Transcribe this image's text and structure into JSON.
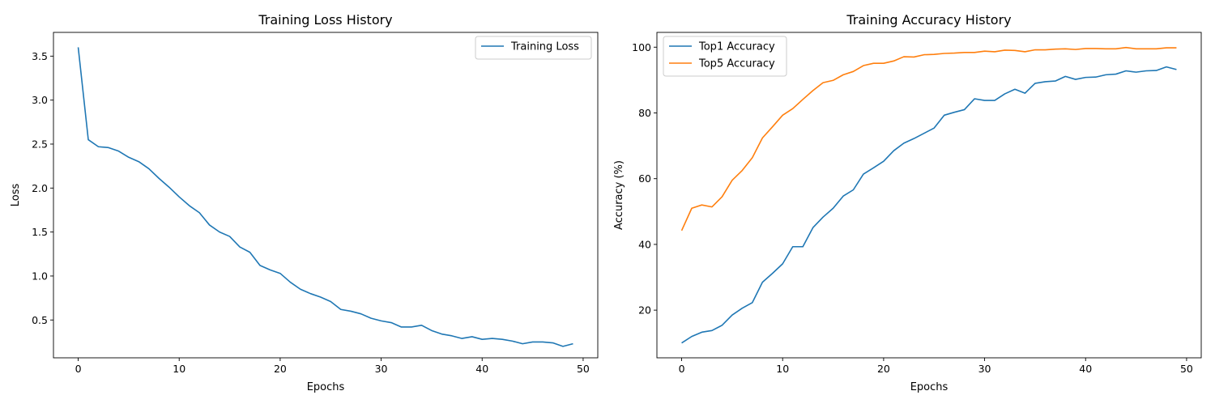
{
  "chart_data": [
    {
      "type": "line",
      "title": "Training Loss History",
      "xlabel": "Epochs",
      "ylabel": "Loss",
      "xlim": [
        -2.45,
        51.45
      ],
      "ylim": [
        0.07,
        3.77
      ],
      "xticks": [
        0,
        10,
        20,
        30,
        40,
        50
      ],
      "yticks": [
        0.5,
        1.0,
        1.5,
        2.0,
        2.5,
        3.0,
        3.5
      ],
      "ytick_labels": [
        "0.5",
        "1.0",
        "1.5",
        "2.0",
        "2.5",
        "3.0",
        "3.5"
      ],
      "legend_position": "top-right",
      "x": [
        0,
        1,
        2,
        3,
        4,
        5,
        6,
        7,
        8,
        9,
        10,
        11,
        12,
        13,
        14,
        15,
        16,
        17,
        18,
        19,
        20,
        21,
        22,
        23,
        24,
        25,
        26,
        27,
        28,
        29,
        30,
        31,
        32,
        33,
        34,
        35,
        36,
        37,
        38,
        39,
        40,
        41,
        42,
        43,
        44,
        45,
        46,
        47,
        48,
        49
      ],
      "series": [
        {
          "name": "Training Loss",
          "color": "#1f77b4",
          "values": [
            3.6,
            2.55,
            2.47,
            2.46,
            2.42,
            2.35,
            2.3,
            2.22,
            2.11,
            2.01,
            1.9,
            1.8,
            1.72,
            1.58,
            1.5,
            1.45,
            1.33,
            1.27,
            1.12,
            1.07,
            1.03,
            0.93,
            0.85,
            0.8,
            0.76,
            0.71,
            0.62,
            0.6,
            0.57,
            0.52,
            0.49,
            0.47,
            0.42,
            0.42,
            0.44,
            0.38,
            0.34,
            0.32,
            0.29,
            0.31,
            0.28,
            0.29,
            0.28,
            0.26,
            0.23,
            0.25,
            0.25,
            0.24,
            0.2,
            0.23
          ]
        }
      ]
    },
    {
      "type": "line",
      "title": "Training Accuracy History",
      "xlabel": "Epochs",
      "ylabel": "Accuracy (%)",
      "xlim": [
        -2.45,
        51.45
      ],
      "ylim": [
        5.5,
        104.5
      ],
      "xticks": [
        0,
        10,
        20,
        30,
        40,
        50
      ],
      "yticks": [
        20,
        40,
        60,
        80,
        100
      ],
      "ytick_labels": [
        "20",
        "40",
        "60",
        "80",
        "100"
      ],
      "legend_position": "top-left",
      "x": [
        0,
        1,
        2,
        3,
        4,
        5,
        6,
        7,
        8,
        9,
        10,
        11,
        12,
        13,
        14,
        15,
        16,
        17,
        18,
        19,
        20,
        21,
        22,
        23,
        24,
        25,
        26,
        27,
        28,
        29,
        30,
        31,
        32,
        33,
        34,
        35,
        36,
        37,
        38,
        39,
        40,
        41,
        42,
        43,
        44,
        45,
        46,
        47,
        48,
        49
      ],
      "series": [
        {
          "name": "Top1 Accuracy",
          "color": "#1f77b4",
          "values": [
            10.0,
            12.0,
            13.3,
            13.8,
            15.4,
            18.5,
            20.6,
            22.3,
            28.5,
            31.2,
            34.1,
            39.3,
            39.3,
            45.1,
            48.3,
            51.0,
            54.7,
            56.6,
            61.4,
            63.3,
            65.3,
            68.5,
            70.8,
            72.2,
            73.8,
            75.4,
            79.3,
            80.2,
            81.0,
            84.3,
            83.8,
            83.8,
            85.8,
            87.2,
            86.0,
            89.0,
            89.5,
            89.7,
            91.1,
            90.2,
            90.8,
            90.9,
            91.6,
            91.8,
            92.8,
            92.4,
            92.8,
            92.9,
            94.0,
            93.2
          ]
        },
        {
          "name": "Top5 Accuracy",
          "color": "#ff7f0e",
          "values": [
            44.2,
            51.0,
            52.0,
            51.4,
            54.5,
            59.5,
            62.5,
            66.4,
            72.4,
            75.8,
            79.3,
            81.3,
            84.1,
            86.8,
            89.2,
            89.9,
            91.6,
            92.6,
            94.4,
            95.1,
            95.1,
            95.8,
            97.1,
            97.0,
            97.7,
            97.8,
            98.1,
            98.2,
            98.4,
            98.4,
            98.8,
            98.6,
            99.1,
            99.0,
            98.6,
            99.2,
            99.2,
            99.4,
            99.5,
            99.3,
            99.6,
            99.6,
            99.5,
            99.5,
            99.9,
            99.5,
            99.5,
            99.5,
            99.8,
            99.8
          ]
        }
      ]
    }
  ]
}
